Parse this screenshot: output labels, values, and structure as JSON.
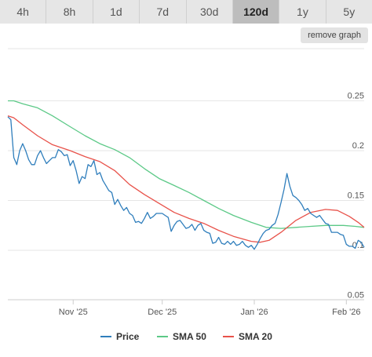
{
  "range_tabs": [
    {
      "label": "4h",
      "active": false
    },
    {
      "label": "8h",
      "active": false
    },
    {
      "label": "1d",
      "active": false
    },
    {
      "label": "7d",
      "active": false
    },
    {
      "label": "30d",
      "active": false
    },
    {
      "label": "120d",
      "active": true
    },
    {
      "label": "1y",
      "active": false
    },
    {
      "label": "5y",
      "active": false
    }
  ],
  "remove_graph_label": "remove graph",
  "chart_data": {
    "type": "line",
    "ylim": [
      0.05,
      0.25
    ],
    "yticks": [
      {
        "value": 0.25,
        "label": "0.25"
      },
      {
        "value": 0.2,
        "label": "0.2"
      },
      {
        "value": 0.15,
        "label": "0.15"
      },
      {
        "value": 0.1,
        "label": "0.1"
      },
      {
        "value": 0.05,
        "label": "0.05"
      }
    ],
    "xlim": [
      "2025-10-10",
      "2026-02-07"
    ],
    "xticks": [
      {
        "date": "2025-11-01",
        "label": "Nov '25"
      },
      {
        "date": "2025-12-01",
        "label": "Dec '25"
      },
      {
        "date": "2026-01-01",
        "label": "Jan '26"
      },
      {
        "date": "2026-02-01",
        "label": "Feb '26"
      }
    ],
    "grid": true,
    "legend_position": "bottom",
    "series": [
      {
        "name": "Price",
        "color": "#2f7ebc",
        "points": [
          [
            "2025-10-10",
            0.234
          ],
          [
            "2025-10-11",
            0.231
          ],
          [
            "2025-10-12",
            0.193
          ],
          [
            "2025-10-13",
            0.186
          ],
          [
            "2025-10-14",
            0.2
          ],
          [
            "2025-10-15",
            0.207
          ],
          [
            "2025-10-16",
            0.2
          ],
          [
            "2025-10-17",
            0.191
          ],
          [
            "2025-10-18",
            0.186
          ],
          [
            "2025-10-19",
            0.186
          ],
          [
            "2025-10-20",
            0.195
          ],
          [
            "2025-10-21",
            0.2
          ],
          [
            "2025-10-22",
            0.193
          ],
          [
            "2025-10-23",
            0.187
          ],
          [
            "2025-10-24",
            0.19
          ],
          [
            "2025-10-25",
            0.193
          ],
          [
            "2025-10-26",
            0.193
          ],
          [
            "2025-10-27",
            0.201
          ],
          [
            "2025-10-28",
            0.199
          ],
          [
            "2025-10-29",
            0.195
          ],
          [
            "2025-10-30",
            0.196
          ],
          [
            "2025-10-31",
            0.185
          ],
          [
            "2025-11-01",
            0.19
          ],
          [
            "2025-11-02",
            0.18
          ],
          [
            "2025-11-03",
            0.167
          ],
          [
            "2025-11-04",
            0.174
          ],
          [
            "2025-11-05",
            0.172
          ],
          [
            "2025-11-06",
            0.186
          ],
          [
            "2025-11-07",
            0.184
          ],
          [
            "2025-11-08",
            0.19
          ],
          [
            "2025-11-09",
            0.176
          ],
          [
            "2025-11-10",
            0.178
          ],
          [
            "2025-11-11",
            0.17
          ],
          [
            "2025-11-12",
            0.165
          ],
          [
            "2025-11-13",
            0.16
          ],
          [
            "2025-11-14",
            0.158
          ],
          [
            "2025-11-15",
            0.146
          ],
          [
            "2025-11-16",
            0.151
          ],
          [
            "2025-11-17",
            0.145
          ],
          [
            "2025-11-18",
            0.14
          ],
          [
            "2025-11-19",
            0.143
          ],
          [
            "2025-11-20",
            0.137
          ],
          [
            "2025-11-21",
            0.135
          ],
          [
            "2025-11-22",
            0.128
          ],
          [
            "2025-11-23",
            0.129
          ],
          [
            "2025-11-24",
            0.127
          ],
          [
            "2025-11-25",
            0.132
          ],
          [
            "2025-11-26",
            0.138
          ],
          [
            "2025-11-27",
            0.132
          ],
          [
            "2025-11-28",
            0.134
          ],
          [
            "2025-11-29",
            0.137
          ],
          [
            "2025-11-30",
            0.137
          ],
          [
            "2025-12-01",
            0.137
          ],
          [
            "2025-12-02",
            0.135
          ],
          [
            "2025-12-03",
            0.133
          ],
          [
            "2025-12-04",
            0.119
          ],
          [
            "2025-12-05",
            0.125
          ],
          [
            "2025-12-06",
            0.129
          ],
          [
            "2025-12-07",
            0.13
          ],
          [
            "2025-12-08",
            0.126
          ],
          [
            "2025-12-09",
            0.122
          ],
          [
            "2025-12-10",
            0.123
          ],
          [
            "2025-12-11",
            0.126
          ],
          [
            "2025-12-12",
            0.12
          ],
          [
            "2025-12-13",
            0.125
          ],
          [
            "2025-12-14",
            0.127
          ],
          [
            "2025-12-15",
            0.12
          ],
          [
            "2025-12-16",
            0.118
          ],
          [
            "2025-12-17",
            0.117
          ],
          [
            "2025-12-18",
            0.107
          ],
          [
            "2025-12-19",
            0.108
          ],
          [
            "2025-12-20",
            0.113
          ],
          [
            "2025-12-21",
            0.107
          ],
          [
            "2025-12-22",
            0.106
          ],
          [
            "2025-12-23",
            0.109
          ],
          [
            "2025-12-24",
            0.106
          ],
          [
            "2025-12-25",
            0.109
          ],
          [
            "2025-12-26",
            0.105
          ],
          [
            "2025-12-27",
            0.106
          ],
          [
            "2025-12-28",
            0.109
          ],
          [
            "2025-12-29",
            0.105
          ],
          [
            "2025-12-30",
            0.103
          ],
          [
            "2025-12-31",
            0.105
          ],
          [
            "2026-01-01",
            0.101
          ],
          [
            "2026-01-02",
            0.106
          ],
          [
            "2026-01-03",
            0.112
          ],
          [
            "2026-01-04",
            0.117
          ],
          [
            "2026-01-05",
            0.12
          ],
          [
            "2026-01-06",
            0.121
          ],
          [
            "2026-01-07",
            0.125
          ],
          [
            "2026-01-08",
            0.127
          ],
          [
            "2026-01-09",
            0.136
          ],
          [
            "2026-01-10",
            0.148
          ],
          [
            "2026-01-11",
            0.161
          ],
          [
            "2026-01-12",
            0.177
          ],
          [
            "2026-01-13",
            0.164
          ],
          [
            "2026-01-14",
            0.155
          ],
          [
            "2026-01-15",
            0.153
          ],
          [
            "2026-01-16",
            0.15
          ],
          [
            "2026-01-17",
            0.146
          ],
          [
            "2026-01-18",
            0.14
          ],
          [
            "2026-01-19",
            0.142
          ],
          [
            "2026-01-20",
            0.137
          ],
          [
            "2026-01-21",
            0.135
          ],
          [
            "2026-01-22",
            0.133
          ],
          [
            "2026-01-23",
            0.135
          ],
          [
            "2026-01-24",
            0.131
          ],
          [
            "2026-01-25",
            0.127
          ],
          [
            "2026-01-26",
            0.126
          ],
          [
            "2026-01-27",
            0.118
          ],
          [
            "2026-01-28",
            0.118
          ],
          [
            "2026-01-29",
            0.118
          ],
          [
            "2026-01-30",
            0.116
          ],
          [
            "2026-01-31",
            0.115
          ],
          [
            "2026-02-01",
            0.106
          ],
          [
            "2026-02-02",
            0.104
          ],
          [
            "2026-02-03",
            0.104
          ],
          [
            "2026-02-04",
            0.102
          ],
          [
            "2026-02-05",
            0.11
          ],
          [
            "2026-02-06",
            0.108
          ],
          [
            "2026-02-07",
            0.103
          ]
        ]
      },
      {
        "name": "SMA 50",
        "color": "#5cc987",
        "points": [
          [
            "2025-10-10",
            0.25
          ],
          [
            "2025-10-12",
            0.25
          ],
          [
            "2025-10-15",
            0.247
          ],
          [
            "2025-10-20",
            0.243
          ],
          [
            "2025-10-25",
            0.235
          ],
          [
            "2025-10-31",
            0.224
          ],
          [
            "2025-11-05",
            0.215
          ],
          [
            "2025-11-10",
            0.207
          ],
          [
            "2025-11-15",
            0.201
          ],
          [
            "2025-11-20",
            0.193
          ],
          [
            "2025-11-25",
            0.182
          ],
          [
            "2025-11-30",
            0.172
          ],
          [
            "2025-12-05",
            0.165
          ],
          [
            "2025-12-10",
            0.158
          ],
          [
            "2025-12-15",
            0.15
          ],
          [
            "2025-12-20",
            0.142
          ],
          [
            "2025-12-25",
            0.135
          ],
          [
            "2025-12-31",
            0.128
          ],
          [
            "2026-01-05",
            0.123
          ],
          [
            "2026-01-10",
            0.122
          ],
          [
            "2026-01-15",
            0.123
          ],
          [
            "2026-01-20",
            0.124
          ],
          [
            "2026-01-25",
            0.125
          ],
          [
            "2026-01-31",
            0.125
          ],
          [
            "2026-02-04",
            0.124
          ],
          [
            "2026-02-07",
            0.123
          ]
        ]
      },
      {
        "name": "SMA 20",
        "color": "#e8524a",
        "points": [
          [
            "2025-10-10",
            0.235
          ],
          [
            "2025-10-12",
            0.233
          ],
          [
            "2025-10-15",
            0.226
          ],
          [
            "2025-10-20",
            0.215
          ],
          [
            "2025-10-25",
            0.206
          ],
          [
            "2025-10-31",
            0.2
          ],
          [
            "2025-11-05",
            0.194
          ],
          [
            "2025-11-10",
            0.189
          ],
          [
            "2025-11-15",
            0.18
          ],
          [
            "2025-11-20",
            0.166
          ],
          [
            "2025-11-25",
            0.156
          ],
          [
            "2025-11-30",
            0.147
          ],
          [
            "2025-12-05",
            0.138
          ],
          [
            "2025-12-10",
            0.132
          ],
          [
            "2025-12-15",
            0.127
          ],
          [
            "2025-12-20",
            0.12
          ],
          [
            "2025-12-25",
            0.114
          ],
          [
            "2025-12-31",
            0.109
          ],
          [
            "2026-01-03",
            0.108
          ],
          [
            "2026-01-06",
            0.11
          ],
          [
            "2026-01-10",
            0.118
          ],
          [
            "2026-01-15",
            0.13
          ],
          [
            "2026-01-20",
            0.138
          ],
          [
            "2026-01-25",
            0.141
          ],
          [
            "2026-01-29",
            0.14
          ],
          [
            "2026-02-02",
            0.134
          ],
          [
            "2026-02-05",
            0.128
          ],
          [
            "2026-02-07",
            0.123
          ]
        ]
      }
    ]
  }
}
